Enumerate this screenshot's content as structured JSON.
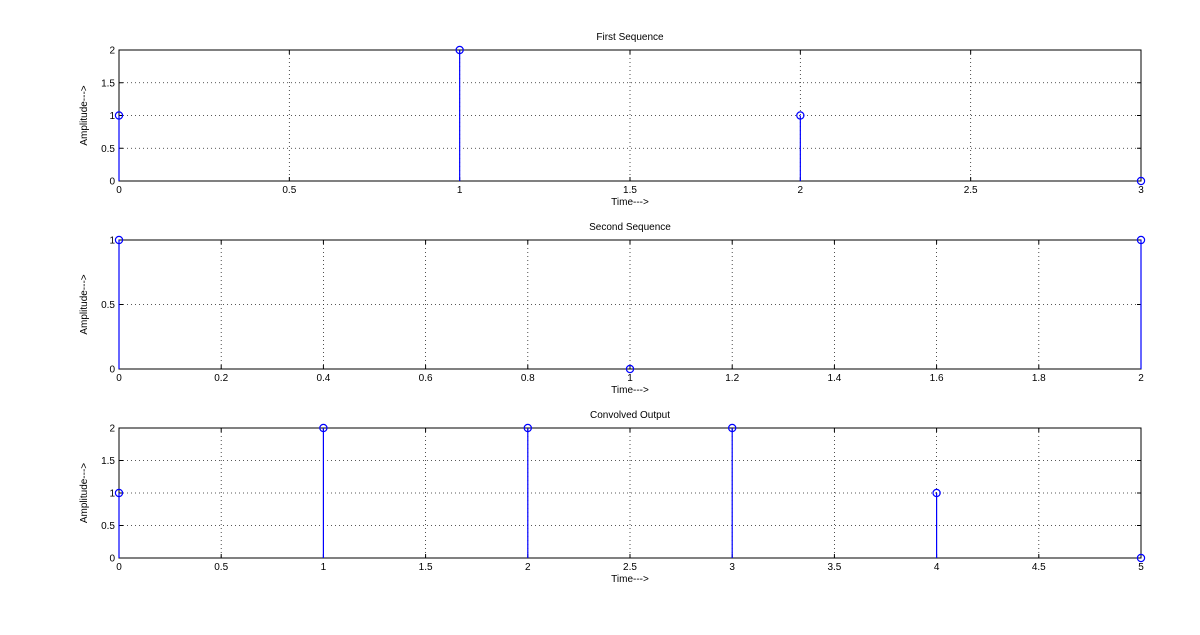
{
  "colors": {
    "stem": "#0000ff",
    "axis": "#000000",
    "background": "#ffffff"
  },
  "chart_data": [
    {
      "type": "stem",
      "title": "First Sequence",
      "xlabel": "Time--->",
      "ylabel": "Amplitude--->",
      "grid": true,
      "xlim": [
        0,
        3
      ],
      "ylim": [
        0,
        2
      ],
      "xticks": [
        "0",
        "0.5",
        "1",
        "1.5",
        "2",
        "2.5",
        "3"
      ],
      "yticks": [
        "0",
        "0.5",
        "1",
        "1.5",
        "2"
      ],
      "x": [
        0,
        1,
        2,
        3
      ],
      "values": [
        1,
        2,
        1,
        0
      ]
    },
    {
      "type": "stem",
      "title": "Second Sequence",
      "xlabel": "Time--->",
      "ylabel": "Amplitude--->",
      "grid": true,
      "xlim": [
        0,
        2
      ],
      "ylim": [
        0,
        1
      ],
      "xticks": [
        "0",
        "0.2",
        "0.4",
        "0.6",
        "0.8",
        "1",
        "1.2",
        "1.4",
        "1.6",
        "1.8",
        "2"
      ],
      "yticks": [
        "0",
        "0.5",
        "1"
      ],
      "x": [
        0,
        1,
        2
      ],
      "values": [
        1,
        0,
        1
      ]
    },
    {
      "type": "stem",
      "title": "Convolved Output",
      "xlabel": "Time--->",
      "ylabel": "Amplitude--->",
      "grid": true,
      "xlim": [
        0,
        5
      ],
      "ylim": [
        0,
        2
      ],
      "xticks": [
        "0",
        "0.5",
        "1",
        "1.5",
        "2",
        "2.5",
        "3",
        "3.5",
        "4",
        "4.5",
        "5"
      ],
      "yticks": [
        "0",
        "0.5",
        "1",
        "1.5",
        "2"
      ],
      "x": [
        0,
        1,
        2,
        3,
        4,
        5
      ],
      "values": [
        1,
        2,
        2,
        2,
        1,
        0
      ]
    }
  ]
}
